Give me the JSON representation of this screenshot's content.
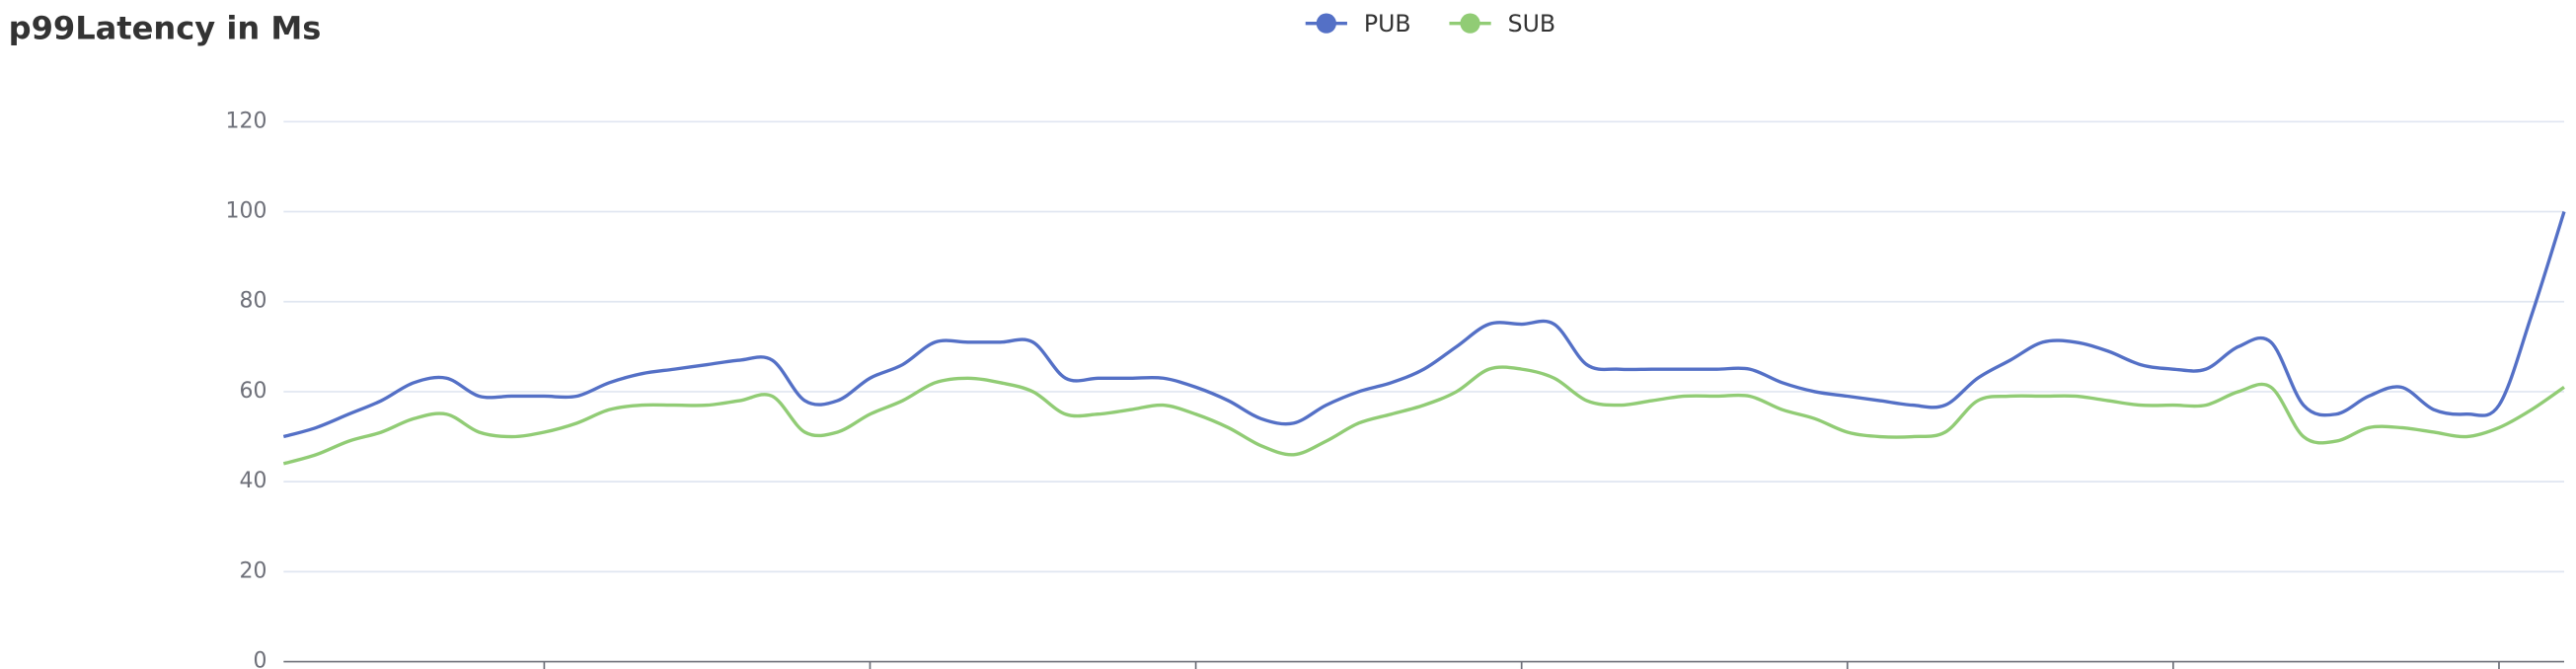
{
  "chart_data": {
    "type": "line",
    "title": "p99Latency in Ms",
    "categories": [
      null,
      null,
      null,
      null,
      null,
      null,
      null,
      null,
      null,
      null,
      null,
      null,
      null,
      null,
      null,
      null,
      null,
      null,
      null,
      null,
      null,
      null,
      null,
      null,
      null,
      null,
      null,
      null,
      null,
      null,
      null,
      null,
      null,
      null,
      null,
      null,
      null,
      null,
      null,
      null,
      null,
      null,
      null,
      null,
      null,
      null,
      null,
      null,
      null,
      null,
      null,
      null,
      null,
      null,
      null,
      null,
      null,
      null,
      null,
      null,
      null,
      null,
      null,
      null,
      null,
      null,
      null,
      null,
      null,
      null,
      null
    ],
    "series": [
      {
        "name": "PUB",
        "color": "#5470c6",
        "values": [
          50,
          52,
          55,
          58,
          62,
          63,
          59,
          59,
          59,
          59,
          62,
          64,
          65,
          66,
          67,
          67,
          58,
          58,
          63,
          66,
          71,
          71,
          71,
          71,
          63,
          63,
          63,
          63,
          61,
          58,
          54,
          53,
          57,
          60,
          62,
          65,
          70,
          75,
          75,
          75,
          66,
          65,
          65,
          65,
          65,
          65,
          62,
          60,
          59,
          58,
          57,
          57,
          63,
          67,
          71,
          71,
          69,
          66,
          65,
          65,
          70,
          71,
          57,
          55,
          59,
          61,
          56,
          55,
          57,
          77,
          100
        ]
      },
      {
        "name": "SUB",
        "color": "#91cc75",
        "values": [
          44,
          46,
          49,
          51,
          54,
          55,
          51,
          50,
          51,
          53,
          56,
          57,
          57,
          57,
          58,
          59,
          51,
          51,
          55,
          58,
          62,
          63,
          62,
          60,
          55,
          55,
          56,
          57,
          55,
          52,
          48,
          46,
          49,
          53,
          55,
          57,
          60,
          65,
          65,
          63,
          58,
          57,
          58,
          59,
          59,
          59,
          56,
          54,
          51,
          50,
          50,
          51,
          58,
          59,
          59,
          59,
          58,
          57,
          57,
          57,
          60,
          61,
          50,
          49,
          52,
          52,
          51,
          50,
          52,
          56,
          61
        ]
      }
    ],
    "ylim": [
      0,
      120
    ],
    "yticks": [
      0,
      20,
      40,
      60,
      80,
      100,
      120
    ],
    "grid": true,
    "smooth": true,
    "legend": "top"
  }
}
